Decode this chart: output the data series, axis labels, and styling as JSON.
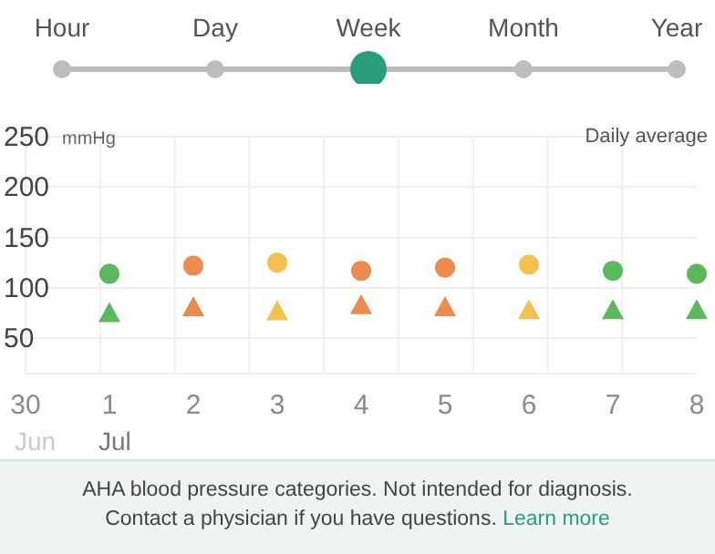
{
  "chart_data": {
    "type": "scatter",
    "ylabel": "mmHg",
    "categories": [
      "30",
      "1",
      "2",
      "3",
      "4",
      "5",
      "6",
      "7",
      "8"
    ],
    "series": [
      {
        "marker": "circle",
        "values": [
          null,
          114,
          122,
          125,
          117,
          120,
          123,
          117,
          114
        ],
        "colors": [
          null,
          "#5cb85c",
          "#ec8a4f",
          "#f2c14e",
          "#ec8a4f",
          "#ec8a4f",
          "#f2c14e",
          "#5cb85c",
          "#5cb85c"
        ]
      },
      {
        "marker": "triangle",
        "values": [
          null,
          75,
          81,
          77,
          83,
          81,
          78,
          78,
          78
        ],
        "colors": [
          null,
          "#5cb85c",
          "#ec8a4f",
          "#f2c14e",
          "#ec8a4f",
          "#ec8a4f",
          "#f2c14e",
          "#5cb85c",
          "#5cb85c"
        ]
      }
    ],
    "ylim": [
      15,
      250
    ],
    "yticks": [
      50,
      100,
      150,
      200,
      250
    ],
    "grid": true,
    "annotations": [
      "Hour",
      "Day",
      "Week",
      "Month",
      "Year",
      "Daily average",
      "Jun",
      "Jul",
      "AHA blood pressure categories. Not intended for diagnosis.",
      "Contact a physician if you have questions.",
      "Learn more"
    ]
  }
}
